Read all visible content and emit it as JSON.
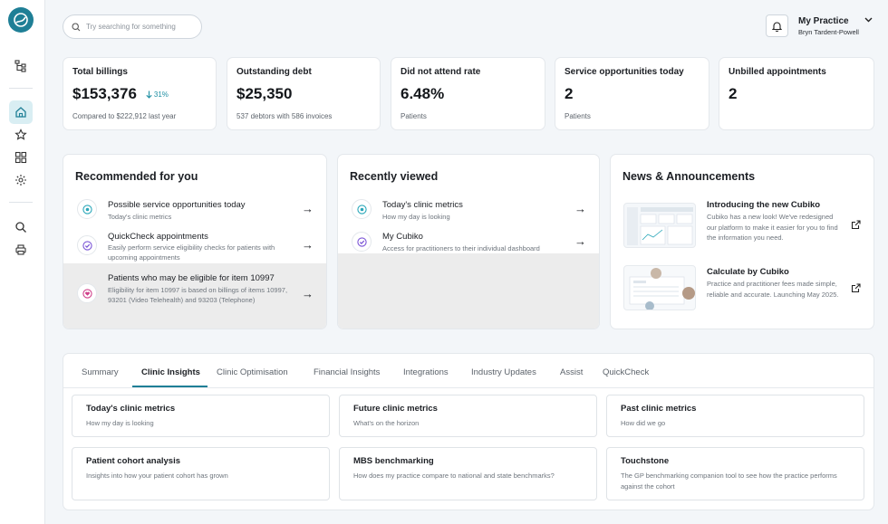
{
  "search": {
    "placeholder": "Try searching for something"
  },
  "account": {
    "practice": "My Practice",
    "user": "Bryn Tardent-Powell"
  },
  "stats": [
    {
      "title": "Total billings",
      "value": "$153,376",
      "delta": "31%",
      "sub": "Compared to $222,912 last year"
    },
    {
      "title": "Outstanding debt",
      "value": "$25,350",
      "sub": "537 debtors with 586 invoices"
    },
    {
      "title": "Did not attend rate",
      "value": "6.48%",
      "sub": "Patients"
    },
    {
      "title": "Service opportunities today",
      "value": "2",
      "sub": "Patients"
    },
    {
      "title": "Unbilled appointments",
      "value": "2",
      "sub": ""
    }
  ],
  "recommended": {
    "title": "Recommended for you",
    "items": [
      {
        "title": "Possible service opportunities today",
        "desc": "Today's clinic metrics",
        "icon": "eye-icon"
      },
      {
        "title": "QuickCheck appointments",
        "desc": "Easily perform service eligibility checks for patients with upcoming appointments",
        "icon": "shield-check-icon"
      },
      {
        "title": "Patients who may be eligible for item 10997",
        "desc": "Eligibility for item 10997 is based on billings of items 10997, 93201 (Video Telehealth) and 93203 (Telephone)",
        "icon": "heart-icon"
      }
    ]
  },
  "recent": {
    "title": "Recently viewed",
    "items": [
      {
        "title": "Today's clinic metrics",
        "desc": "How my day is looking",
        "icon": "eye-icon"
      },
      {
        "title": "My Cubiko",
        "desc": "Access for practitioners to their individual dashboard",
        "icon": "shield-check-icon"
      }
    ]
  },
  "news": {
    "title": "News & Announcements",
    "items": [
      {
        "title": "Introducing the new Cubiko",
        "desc": "Cubiko has a new look! We've redesigned our platform to make it easier for you to find the information you need."
      },
      {
        "title": "Calculate by Cubiko",
        "desc": "Practice and practitioner fees made simple, reliable and accurate. Launching May 2025."
      }
    ]
  },
  "tabs": [
    "Summary",
    "Clinic Insights",
    "Clinic Optimisation",
    "Financial Insights",
    "Integrations",
    "Industry Updates",
    "Assist",
    "QuickCheck"
  ],
  "active_tab": "Clinic Insights",
  "insights": [
    {
      "title": "Today's clinic metrics",
      "desc": "How my day is looking"
    },
    {
      "title": "Future clinic metrics",
      "desc": "What's on the horizon"
    },
    {
      "title": "Past clinic metrics",
      "desc": "How did we go"
    },
    {
      "title": "Patient cohort analysis",
      "desc": "Insights into how your patient cohort has grown"
    },
    {
      "title": "MBS benchmarking",
      "desc": "How does my practice compare to national and state benchmarks?"
    },
    {
      "title": "Touchstone",
      "desc": "The GP benchmarking companion tool to see how the practice performs against the cohort"
    }
  ],
  "colors": {
    "accent": "#1f7f96",
    "icon_teal": "#2aa7b9",
    "icon_purple": "#7b54d6",
    "icon_pink": "#d0408a"
  }
}
